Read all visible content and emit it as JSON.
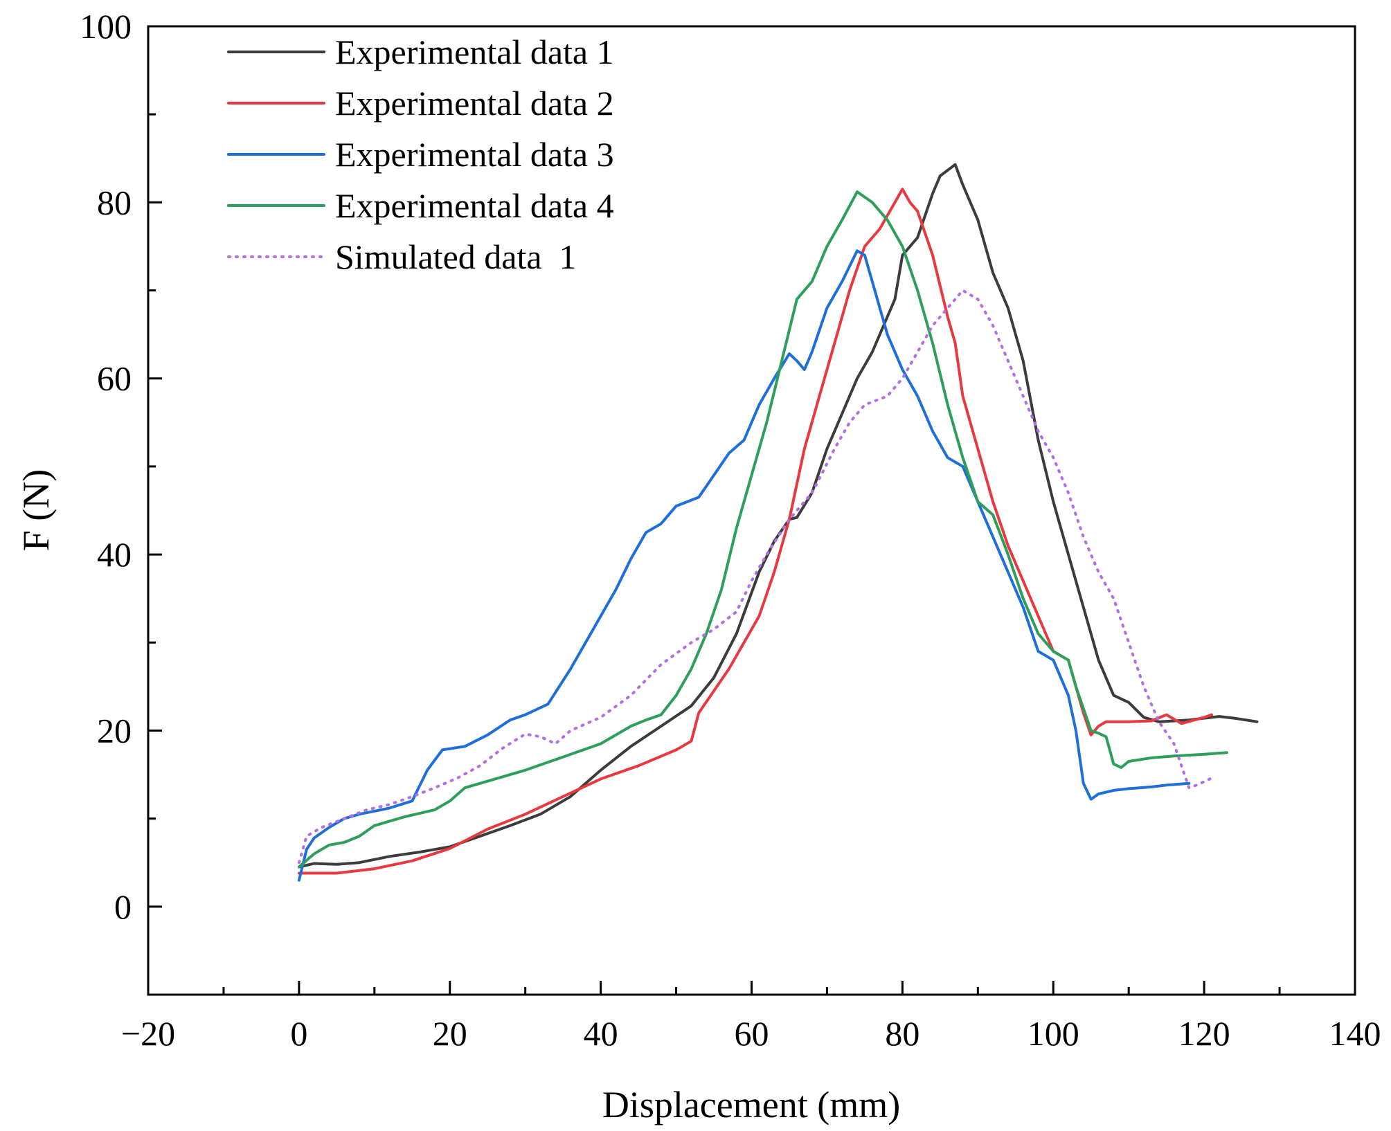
{
  "chart_data": {
    "type": "line",
    "title": "",
    "xlabel": "Displacement (mm)",
    "ylabel": "F (N)",
    "xlim": [
      -20,
      140
    ],
    "ylim": [
      -10,
      100
    ],
    "x_ticks": [
      -20,
      0,
      20,
      40,
      60,
      80,
      100,
      120,
      140
    ],
    "x_tick_labels": [
      "−20",
      "0",
      "20",
      "40",
      "60",
      "80",
      "100",
      "120",
      "140"
    ],
    "y_ticks": [
      0,
      20,
      40,
      60,
      80,
      100
    ],
    "y_tick_labels": [
      "0",
      "20",
      "40",
      "60",
      "80",
      "100"
    ],
    "grid": false,
    "legend_position": "top-left",
    "series": [
      {
        "name": "Experimental data 1",
        "color": "#3c3c3c",
        "style": "solid",
        "points": [
          [
            0,
            4.5
          ],
          [
            2,
            4.9
          ],
          [
            5,
            4.8
          ],
          [
            8,
            5.0
          ],
          [
            12,
            5.7
          ],
          [
            16,
            6.2
          ],
          [
            20,
            6.8
          ],
          [
            24,
            8
          ],
          [
            28,
            9.2
          ],
          [
            32,
            10.5
          ],
          [
            36,
            12.5
          ],
          [
            40,
            15.5
          ],
          [
            44,
            18.2
          ],
          [
            48,
            20.5
          ],
          [
            52,
            22.8
          ],
          [
            55,
            26
          ],
          [
            58,
            31
          ],
          [
            61,
            38
          ],
          [
            63,
            41.5
          ],
          [
            65,
            44
          ],
          [
            66,
            44.2
          ],
          [
            68,
            47
          ],
          [
            70,
            52
          ],
          [
            72,
            56
          ],
          [
            74,
            60
          ],
          [
            76,
            63
          ],
          [
            78,
            67
          ],
          [
            79,
            69
          ],
          [
            80,
            74
          ],
          [
            81,
            75
          ],
          [
            82,
            76
          ],
          [
            84,
            81
          ],
          [
            85,
            83
          ],
          [
            87,
            84.3
          ],
          [
            88,
            82
          ],
          [
            90,
            78
          ],
          [
            92,
            72
          ],
          [
            94,
            68
          ],
          [
            96,
            62
          ],
          [
            98,
            53
          ],
          [
            100,
            46
          ],
          [
            102,
            40
          ],
          [
            104,
            34
          ],
          [
            106,
            28
          ],
          [
            108,
            24
          ],
          [
            110,
            23.2
          ],
          [
            112,
            21.5
          ],
          [
            114,
            21
          ],
          [
            116,
            21.1
          ],
          [
            118,
            21.2
          ],
          [
            120,
            21.4
          ],
          [
            122,
            21.6
          ],
          [
            124,
            21.4
          ],
          [
            127,
            21
          ]
        ]
      },
      {
        "name": "Experimental data 2",
        "color": "#e8393f",
        "style": "solid",
        "points": [
          [
            0,
            3.8
          ],
          [
            5,
            3.8
          ],
          [
            10,
            4.3
          ],
          [
            15,
            5.2
          ],
          [
            20,
            6.6
          ],
          [
            25,
            8.8
          ],
          [
            30,
            10.5
          ],
          [
            35,
            12.5
          ],
          [
            40,
            14.5
          ],
          [
            45,
            16.0
          ],
          [
            50,
            17.8
          ],
          [
            52,
            18.8
          ],
          [
            53,
            22
          ],
          [
            55,
            24.5
          ],
          [
            57,
            27
          ],
          [
            59,
            30
          ],
          [
            61,
            33
          ],
          [
            63,
            38
          ],
          [
            65,
            44
          ],
          [
            67,
            52
          ],
          [
            69,
            58
          ],
          [
            71,
            64
          ],
          [
            73,
            70
          ],
          [
            75,
            75
          ],
          [
            77,
            77
          ],
          [
            79,
            80
          ],
          [
            80,
            81.5
          ],
          [
            81,
            80
          ],
          [
            82,
            79
          ],
          [
            84,
            74
          ],
          [
            86,
            67
          ],
          [
            87,
            64
          ],
          [
            88,
            58
          ],
          [
            90,
            52
          ],
          [
            92,
            46
          ],
          [
            94,
            41
          ],
          [
            96,
            37
          ],
          [
            98,
            33
          ],
          [
            100,
            29
          ],
          [
            102,
            28
          ],
          [
            104,
            22
          ],
          [
            105,
            19.5
          ],
          [
            106,
            20.5
          ],
          [
            107,
            21
          ],
          [
            110,
            21
          ],
          [
            113,
            21.1
          ],
          [
            115,
            21.8
          ],
          [
            117,
            20.8
          ],
          [
            120,
            21.5
          ],
          [
            121,
            21.8
          ]
        ]
      },
      {
        "name": "Experimental data 3",
        "color": "#1f6fdb",
        "style": "solid",
        "points": [
          [
            0,
            3.0
          ],
          [
            1,
            6.5
          ],
          [
            2,
            7.8
          ],
          [
            4,
            9
          ],
          [
            6,
            10
          ],
          [
            8,
            10.5
          ],
          [
            12,
            11.2
          ],
          [
            15,
            12
          ],
          [
            17,
            15.5
          ],
          [
            19,
            17.8
          ],
          [
            22,
            18.2
          ],
          [
            25,
            19.5
          ],
          [
            28,
            21.2
          ],
          [
            30,
            21.8
          ],
          [
            33,
            23
          ],
          [
            36,
            27
          ],
          [
            38,
            30
          ],
          [
            40,
            33
          ],
          [
            42,
            36
          ],
          [
            44,
            39.5
          ],
          [
            46,
            42.5
          ],
          [
            48,
            43.5
          ],
          [
            50,
            45.5
          ],
          [
            53,
            46.5
          ],
          [
            55,
            49
          ],
          [
            57,
            51.5
          ],
          [
            59,
            53
          ],
          [
            61,
            57
          ],
          [
            63,
            60
          ],
          [
            65,
            62.8
          ],
          [
            66,
            62
          ],
          [
            67,
            61
          ],
          [
            68,
            63
          ],
          [
            70,
            68
          ],
          [
            72,
            71
          ],
          [
            74,
            74.5
          ],
          [
            75,
            74
          ],
          [
            76,
            71
          ],
          [
            77,
            68
          ],
          [
            78,
            65
          ],
          [
            80,
            61
          ],
          [
            82,
            58
          ],
          [
            84,
            54
          ],
          [
            86,
            51
          ],
          [
            88,
            50
          ],
          [
            90,
            46
          ],
          [
            92,
            42
          ],
          [
            94,
            38
          ],
          [
            96,
            34
          ],
          [
            98,
            29
          ],
          [
            100,
            28
          ],
          [
            102,
            24
          ],
          [
            103,
            20
          ],
          [
            104,
            14
          ],
          [
            105,
            12.2
          ],
          [
            106,
            12.8
          ],
          [
            108,
            13.2
          ],
          [
            110,
            13.4
          ],
          [
            113,
            13.6
          ],
          [
            115,
            13.8
          ],
          [
            118,
            14
          ]
        ]
      },
      {
        "name": "Experimental data 4",
        "color": "#2e9e5b",
        "style": "solid",
        "points": [
          [
            0,
            4.5
          ],
          [
            2,
            6
          ],
          [
            4,
            7
          ],
          [
            6,
            7.3
          ],
          [
            8,
            8
          ],
          [
            10,
            9.2
          ],
          [
            14,
            10.2
          ],
          [
            18,
            11
          ],
          [
            20,
            12
          ],
          [
            22,
            13.5
          ],
          [
            26,
            14.5
          ],
          [
            30,
            15.5
          ],
          [
            35,
            17
          ],
          [
            40,
            18.5
          ],
          [
            44,
            20.5
          ],
          [
            46,
            21.2
          ],
          [
            48,
            21.8
          ],
          [
            50,
            24
          ],
          [
            52,
            27
          ],
          [
            54,
            31
          ],
          [
            56,
            36
          ],
          [
            58,
            43
          ],
          [
            60,
            49
          ],
          [
            62,
            55
          ],
          [
            64,
            62
          ],
          [
            66,
            69
          ],
          [
            68,
            71
          ],
          [
            70,
            75
          ],
          [
            72,
            78
          ],
          [
            74,
            81.2
          ],
          [
            76,
            80
          ],
          [
            78,
            78
          ],
          [
            80,
            75
          ],
          [
            82,
            70
          ],
          [
            84,
            64
          ],
          [
            86,
            57
          ],
          [
            88,
            51
          ],
          [
            90,
            46
          ],
          [
            92,
            44.5
          ],
          [
            94,
            40
          ],
          [
            96,
            35
          ],
          [
            98,
            31
          ],
          [
            100,
            29
          ],
          [
            102,
            28
          ],
          [
            103,
            25
          ],
          [
            105,
            20
          ],
          [
            106,
            19.7
          ],
          [
            107,
            19.3
          ],
          [
            108,
            16.2
          ],
          [
            109,
            15.8
          ],
          [
            110,
            16.5
          ],
          [
            113,
            16.9
          ],
          [
            116,
            17.1
          ],
          [
            120,
            17.3
          ],
          [
            123,
            17.5
          ]
        ]
      },
      {
        "name": "Simulated data  1",
        "color": "#b36fe0",
        "style": "dotted",
        "points": [
          [
            0,
            5
          ],
          [
            1,
            8
          ],
          [
            3,
            9
          ],
          [
            6,
            10
          ],
          [
            9,
            11
          ],
          [
            12,
            11.6
          ],
          [
            15,
            12.5
          ],
          [
            18,
            13.5
          ],
          [
            21,
            14.6
          ],
          [
            24,
            16
          ],
          [
            27,
            18
          ],
          [
            30,
            19.6
          ],
          [
            32,
            19.3
          ],
          [
            34,
            18.5
          ],
          [
            36,
            20
          ],
          [
            40,
            21.5
          ],
          [
            44,
            24
          ],
          [
            48,
            27.5
          ],
          [
            52,
            30
          ],
          [
            55,
            31.5
          ],
          [
            58,
            33.5
          ],
          [
            60,
            37
          ],
          [
            62,
            40
          ],
          [
            65,
            44
          ],
          [
            68,
            47
          ],
          [
            71,
            52
          ],
          [
            73,
            55
          ],
          [
            75,
            57
          ],
          [
            78,
            58
          ],
          [
            80,
            60
          ],
          [
            82,
            63
          ],
          [
            84,
            66
          ],
          [
            86,
            68
          ],
          [
            88,
            70
          ],
          [
            90,
            69
          ],
          [
            92,
            66
          ],
          [
            94,
            62
          ],
          [
            96,
            58
          ],
          [
            98,
            54
          ],
          [
            100,
            51
          ],
          [
            102,
            47
          ],
          [
            104,
            42
          ],
          [
            106,
            38
          ],
          [
            108,
            35
          ],
          [
            110,
            30
          ],
          [
            112,
            25
          ],
          [
            114,
            21
          ],
          [
            116,
            18.5
          ],
          [
            117,
            16
          ],
          [
            118,
            13.5
          ],
          [
            119,
            13.8
          ],
          [
            120,
            14.2
          ],
          [
            121,
            14.6
          ]
        ]
      }
    ]
  }
}
